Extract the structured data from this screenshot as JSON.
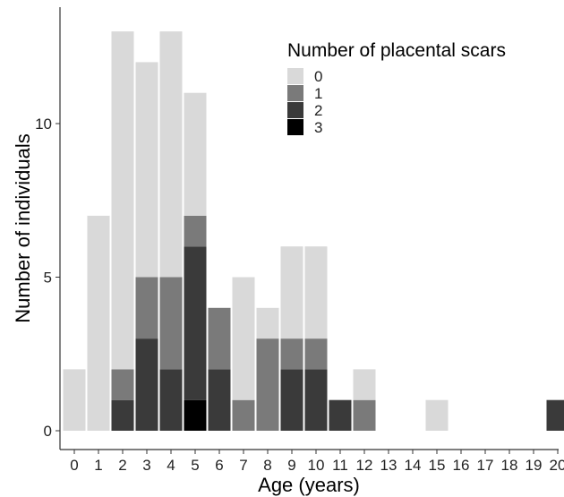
{
  "chart_data": {
    "type": "bar",
    "stacked": true,
    "xlabel": "Age (years)",
    "ylabel": "Number of individuals",
    "x": [
      0,
      1,
      2,
      3,
      4,
      5,
      6,
      7,
      8,
      9,
      10,
      11,
      12,
      13,
      14,
      15,
      16,
      17,
      18,
      19,
      20
    ],
    "x_tick_labels": [
      "0",
      "1",
      "2",
      "3",
      "4",
      "5",
      "6",
      "7",
      "8",
      "9",
      "10",
      "11",
      "12",
      "13",
      "14",
      "15",
      "16",
      "17",
      "18",
      "19",
      "20"
    ],
    "yticks": [
      0,
      5,
      10
    ],
    "y_tick_labels": [
      "0",
      "5",
      "10"
    ],
    "ylim": [
      0,
      13
    ],
    "grid": false,
    "legend": {
      "title": "Number of placental scars",
      "position": "top-right"
    },
    "series": [
      {
        "name": "0",
        "color": "#d9d9d9",
        "values": [
          2,
          7,
          11,
          7,
          8,
          4,
          0,
          4,
          1,
          3,
          3,
          0,
          1,
          0,
          0,
          1,
          0,
          0,
          0,
          0,
          0
        ]
      },
      {
        "name": "1",
        "color": "#7a7a7a",
        "values": [
          0,
          0,
          1,
          2,
          3,
          1,
          2,
          1,
          3,
          1,
          1,
          0,
          1,
          0,
          0,
          0,
          0,
          0,
          0,
          0,
          0
        ]
      },
      {
        "name": "2",
        "color": "#3a3a3a",
        "values": [
          0,
          0,
          1,
          3,
          2,
          5,
          2,
          0,
          0,
          2,
          2,
          1,
          0,
          0,
          0,
          0,
          0,
          0,
          0,
          0,
          1
        ]
      },
      {
        "name": "3",
        "color": "#000000",
        "values": [
          0,
          0,
          0,
          0,
          0,
          1,
          0,
          0,
          0,
          0,
          0,
          0,
          0,
          0,
          0,
          0,
          0,
          0,
          0,
          0,
          0
        ]
      }
    ]
  }
}
